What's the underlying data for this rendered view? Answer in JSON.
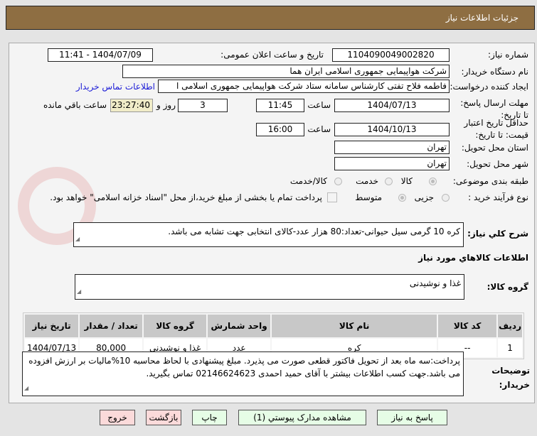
{
  "header": {
    "title": "جزئیات اطلاعات نیاز"
  },
  "watermark": "AriaTender.net",
  "form": {
    "need_number_label": "شماره نیاز:",
    "need_number": "1104090049002820",
    "announce_label": "تاریخ و ساعت اعلان عمومی:",
    "announce_value": "1404/07/09 - 11:41",
    "buyer_label": "نام دستگاه خریدار:",
    "buyer": "شرکت هواپیمایی جمهوری اسلامی ایران هما",
    "creator_label": "ایجاد کننده درخواست:",
    "creator": "فاطمه فلاح تفتی کارشناس سامانه ستاد شرکت هواپیمایی جمهوری اسلامی ا",
    "contact_link": "اطلاعات تماس خریدار",
    "deadline_label": "مهلت ارسال پاسخ: تا تاریخ:",
    "deadline_date": "1404/07/13",
    "time_label": "ساعت",
    "deadline_time": "11:45",
    "days": "3",
    "days_label": "روز و",
    "remaining": "23:27:40",
    "remaining_label": "ساعت باقي مانده",
    "validity_label": "حداقل تاریخ اعتبار قیمت: تا تاریخ:",
    "validity_date": "1404/10/13",
    "validity_time": "16:00",
    "province_label": "استان محل تحویل:",
    "province": "تهران",
    "city_label": "شهر محل تحویل:",
    "city": "تهران",
    "category_label": "طبقه بندی موضوعی:",
    "category_options": [
      "کالا",
      "خدمت",
      "کالا/خدمت"
    ],
    "category_selected": "کالا",
    "process_label": "نوع فرآیند خرید :",
    "process_options": [
      "جزیی",
      "متوسط"
    ],
    "payment_note": "پرداخت تمام یا بخشی از مبلغ خرید،از محل \"اسناد خزانه اسلامی\" خواهد بود.",
    "desc_label": "شرح کلي نیاز:",
    "desc": "کره 10 گرمی سیل حیوانی-تعداد:80 هزار عدد-کالای انتخابی جهت تشابه می باشد.",
    "goods_title": "اطلاعات کالاهاي مورد نیاز",
    "group_label": "گروه کالا:",
    "group": "غذا و نوشیدنی"
  },
  "table": {
    "headers": [
      "ردیف",
      "کد کالا",
      "نام کالا",
      "واحد شمارش",
      "گروه کالا",
      "تعداد / مقدار",
      "تاریخ نیاز"
    ],
    "rows": [
      [
        "1",
        "--",
        "کره",
        "عدد",
        "غذا و نوشیدنی",
        "80,000",
        "1404/07/13"
      ]
    ]
  },
  "notes": {
    "label": "توضیحات خریدار:",
    "text": "پرداخت:سه ماه بعد از تحویل فاکتور قطعی صورت می پذیرد. مبلغ پیشنهادی با لحاظ محاسبه 10%مالیات بر ارزش افزوده می باشد.جهت کسب اطلاعات بیشتر با آقای حمید احمدی 02146624623 تماس بگیرید."
  },
  "buttons": {
    "reply": "پاسخ به نیاز",
    "attachments": "مشاهده مدارک پیوستي (1)",
    "print": "چاپ",
    "back": "بازگشت",
    "exit": "خروج"
  }
}
